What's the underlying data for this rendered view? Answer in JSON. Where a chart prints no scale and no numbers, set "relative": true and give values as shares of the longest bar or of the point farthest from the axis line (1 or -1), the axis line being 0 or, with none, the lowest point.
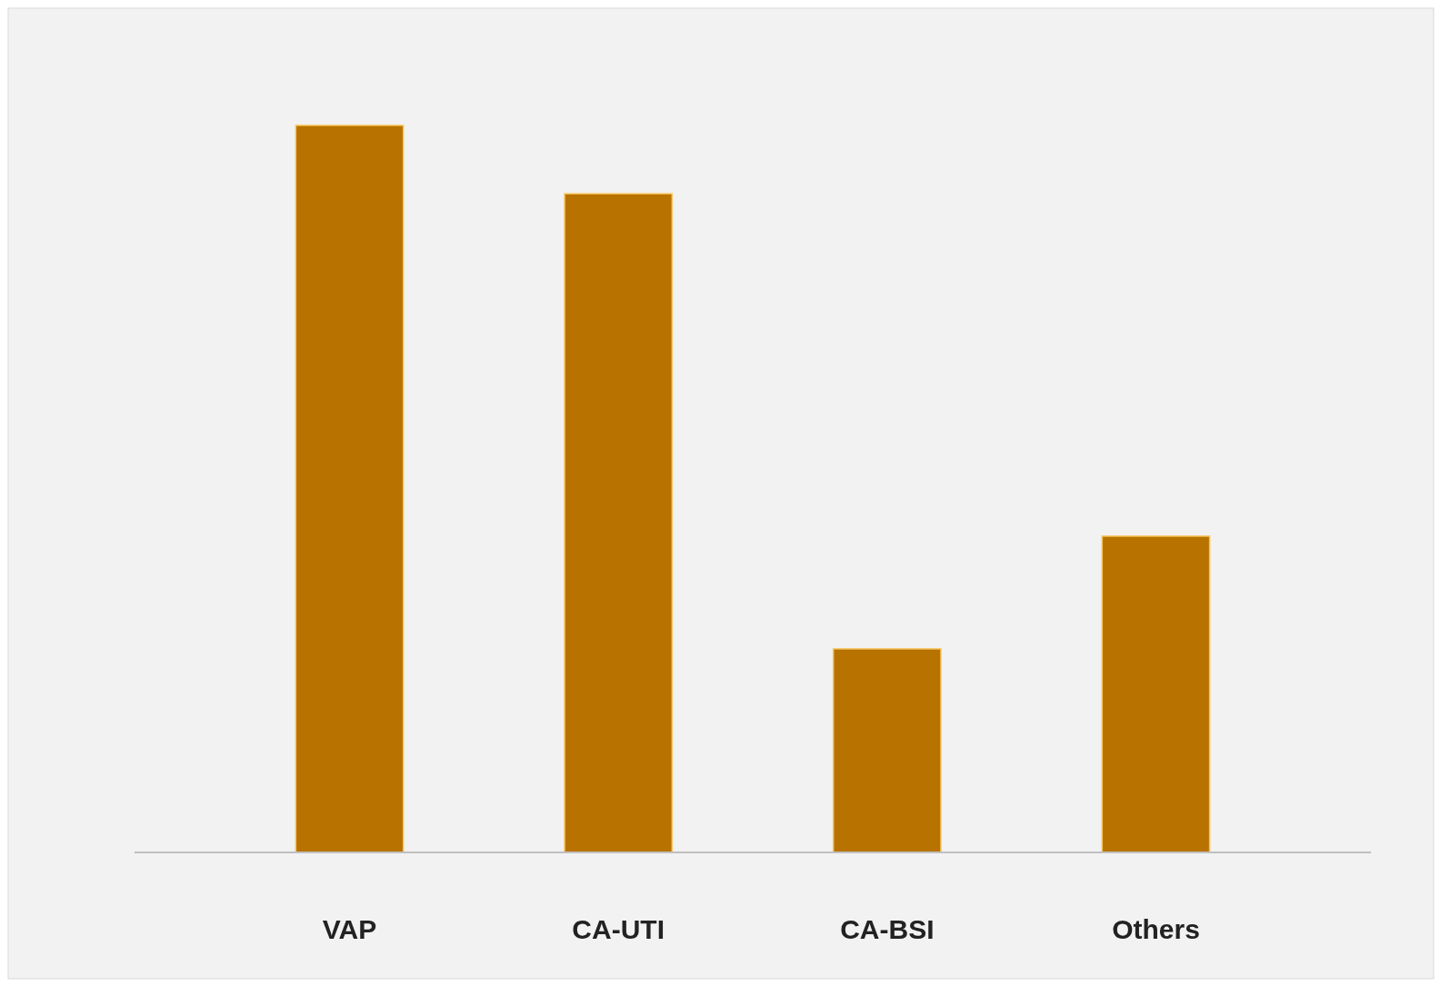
{
  "chart_data": {
    "type": "bar",
    "relative": true,
    "categories": [
      "VAP",
      "CA-UTI",
      "CA-BSI",
      "Others"
    ],
    "values": [
      1,
      0.906,
      0.28,
      0.435
    ],
    "color": "#b87200"
  }
}
